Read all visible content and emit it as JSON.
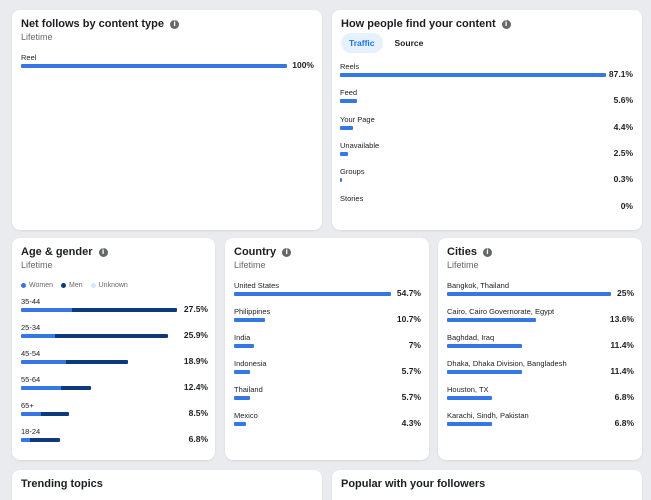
{
  "cards": {
    "net_follows": {
      "title": "Net follows by content type",
      "subtitle": "Lifetime",
      "rows": [
        {
          "label": "Reel",
          "value": "100%",
          "pct": 100
        }
      ]
    },
    "find_content": {
      "title": "How people find your content",
      "tabs": [
        "Traffic",
        "Source"
      ],
      "active_tab": "Traffic",
      "rows": [
        {
          "label": "Reels",
          "value": "87.1%",
          "pct": 87.1
        },
        {
          "label": "Feed",
          "value": "5.6%",
          "pct": 5.6
        },
        {
          "label": "Your Page",
          "value": "4.4%",
          "pct": 4.4
        },
        {
          "label": "Unavailable",
          "value": "2.5%",
          "pct": 2.5
        },
        {
          "label": "Groups",
          "value": "0.3%",
          "pct": 0.3
        },
        {
          "label": "Stories",
          "value": "0%",
          "pct": 0
        }
      ]
    },
    "age_gender": {
      "title": "Age & gender",
      "subtitle": "Lifetime",
      "legend": [
        {
          "label": "Women",
          "color": "#3578e5"
        },
        {
          "label": "Men",
          "color": "#0c3a7a"
        },
        {
          "label": "Unknown",
          "color": "#d8e6fb"
        }
      ],
      "rows": [
        {
          "label": "35-44",
          "value": "27.5%",
          "women": 9.0,
          "men": 18.5
        },
        {
          "label": "25-34",
          "value": "25.9%",
          "women": 6.0,
          "men": 19.9
        },
        {
          "label": "45-54",
          "value": "18.9%",
          "women": 8.0,
          "men": 10.9
        },
        {
          "label": "55-64",
          "value": "12.4%",
          "women": 7.0,
          "men": 5.4
        },
        {
          "label": "65+",
          "value": "8.5%",
          "women": 3.5,
          "men": 5.0
        },
        {
          "label": "18-24",
          "value": "6.8%",
          "women": 1.5,
          "men": 5.3
        }
      ]
    },
    "country": {
      "title": "Country",
      "subtitle": "Lifetime",
      "rows": [
        {
          "label": "United States",
          "value": "54.7%",
          "pct": 54.7
        },
        {
          "label": "Philippines",
          "value": "10.7%",
          "pct": 10.7
        },
        {
          "label": "India",
          "value": "7%",
          "pct": 7
        },
        {
          "label": "Indonesia",
          "value": "5.7%",
          "pct": 5.7
        },
        {
          "label": "Thailand",
          "value": "5.7%",
          "pct": 5.7
        },
        {
          "label": "Mexico",
          "value": "4.3%",
          "pct": 4.3
        }
      ]
    },
    "cities": {
      "title": "Cities",
      "subtitle": "Lifetime",
      "rows": [
        {
          "label": "Bangkok, Thailand",
          "value": "25%",
          "pct": 25
        },
        {
          "label": "Cairo, Cairo Governorate, Egypt",
          "value": "13.6%",
          "pct": 13.6
        },
        {
          "label": "Baghdad, Iraq",
          "value": "11.4%",
          "pct": 11.4
        },
        {
          "label": "Dhaka, Dhaka Division, Bangladesh",
          "value": "11.4%",
          "pct": 11.4
        },
        {
          "label": "Houston, TX",
          "value": "6.8%",
          "pct": 6.8
        },
        {
          "label": "Karachi, Sindh, Pakistan",
          "value": "6.8%",
          "pct": 6.8
        }
      ]
    },
    "trending": {
      "title": "Trending topics"
    },
    "popular": {
      "title": "Popular with your followers"
    }
  },
  "colors": {
    "bar": "#3578e5",
    "men": "#0c3a7a",
    "unknown": "#d8e6fb"
  }
}
